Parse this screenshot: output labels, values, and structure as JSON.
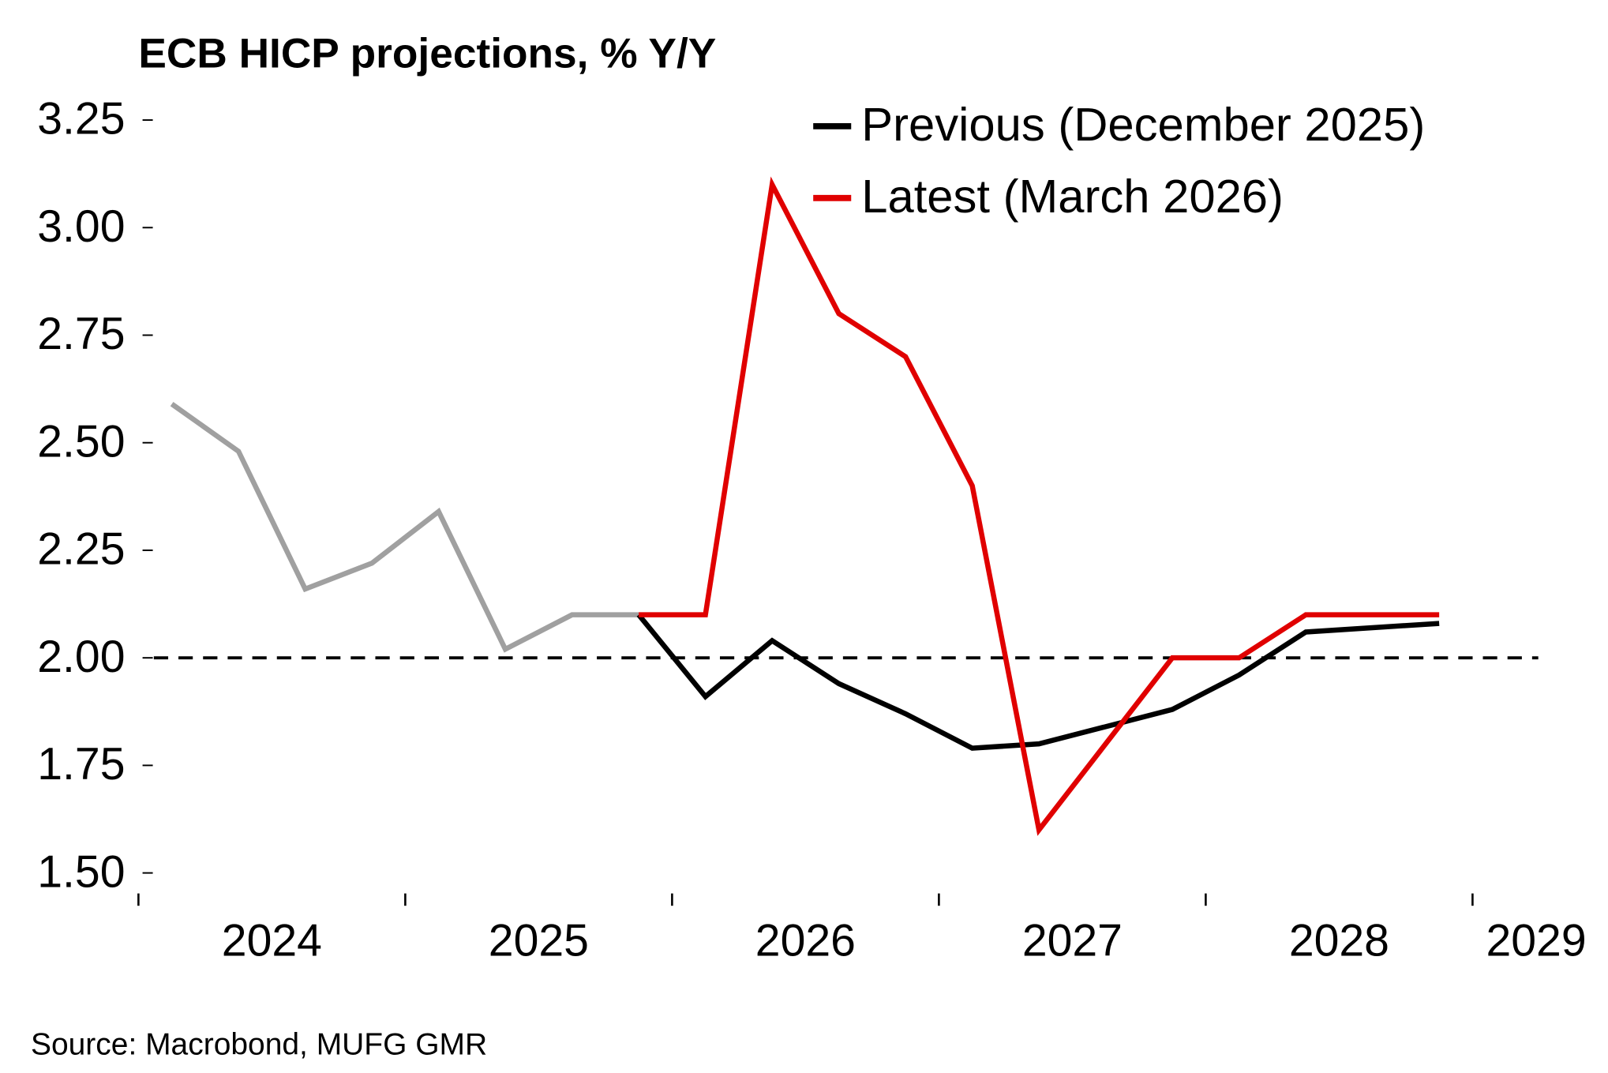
{
  "chart_data": {
    "type": "line",
    "title": "ECB HICP projections, % Y/Y",
    "source": "Source: Macrobond, MUFG GMR",
    "x": [
      2024.125,
      2024.375,
      2024.625,
      2024.875,
      2025.125,
      2025.375,
      2025.625,
      2025.875,
      2026.125,
      2026.375,
      2026.625,
      2026.875,
      2027.125,
      2027.375,
      2027.625,
      2027.875,
      2028.125,
      2028.375,
      2028.625,
      2028.875
    ],
    "series": [
      {
        "color": "#a0a0a0",
        "values": [
          2.59,
          2.48,
          2.16,
          2.22,
          2.34,
          2.02,
          2.1,
          2.1,
          null,
          null,
          null,
          null,
          null,
          null,
          null,
          null,
          null,
          null,
          null,
          null
        ]
      },
      {
        "name": "Previous (December 2025)",
        "color": "#000000",
        "values": [
          null,
          null,
          null,
          null,
          null,
          null,
          null,
          2.1,
          1.91,
          2.04,
          1.94,
          1.87,
          1.79,
          1.8,
          1.84,
          1.88,
          1.96,
          2.06,
          2.07,
          2.08
        ]
      },
      {
        "name": "Latest (March 2026)",
        "color": "#e00000",
        "values": [
          null,
          null,
          null,
          null,
          null,
          null,
          null,
          2.1,
          2.1,
          3.1,
          2.8,
          2.7,
          2.4,
          1.6,
          1.8,
          2.0,
          2.0,
          2.1,
          2.1,
          2.1
        ]
      }
    ],
    "xlim": [
      2024,
      2029.5
    ],
    "xticks": [
      2024,
      2025,
      2026,
      2027,
      2028,
      2029
    ],
    "ylim": [
      1.45,
      3.3
    ],
    "yticks": [
      {
        "value": 1.5,
        "label": "1.50"
      },
      {
        "value": 1.75,
        "label": "1.75"
      },
      {
        "value": 2,
        "label": "2.00"
      },
      {
        "value": 2.25,
        "label": "2.25"
      },
      {
        "value": 2.5,
        "label": "2.50"
      },
      {
        "value": 2.75,
        "label": "2.75"
      },
      {
        "value": 3,
        "label": "3.00"
      },
      {
        "value": 3.25,
        "label": "3.25"
      }
    ],
    "reference_line": 2,
    "legend": "top-right"
  }
}
